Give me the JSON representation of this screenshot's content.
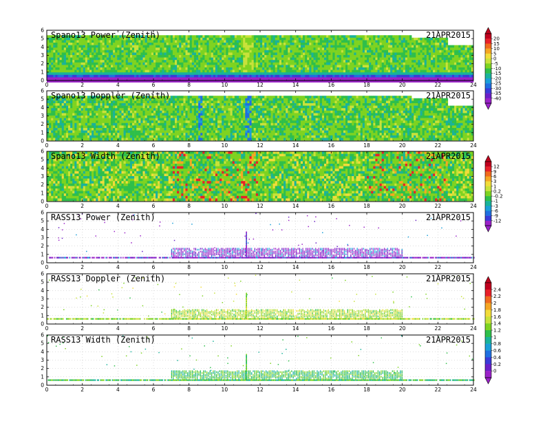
{
  "chart_data": [
    {
      "type": "heatmap",
      "title": "Spano13 Power (Zenith)",
      "date": "21APR2015",
      "x_ticks": [
        "0",
        "2",
        "4",
        "6",
        "8",
        "10",
        "12",
        "14",
        "16",
        "18",
        "20",
        "22",
        "24"
      ],
      "y_ticks": [
        "0",
        "1",
        "2",
        "3",
        "4",
        "5",
        "6"
      ],
      "xlim": [
        0,
        24
      ],
      "ylim": [
        0,
        6
      ],
      "field": "power_profile",
      "colorbar": "cb1"
    },
    {
      "type": "heatmap",
      "title": "Spano13 Doppler (Zenith)",
      "date": "21APR2015",
      "x_ticks": [
        "0",
        "2",
        "4",
        "6",
        "8",
        "10",
        "12",
        "14",
        "16",
        "18",
        "20",
        "22",
        "24"
      ],
      "y_ticks": [
        "0",
        "1",
        "2",
        "3",
        "4",
        "5",
        "6"
      ],
      "xlim": [
        0,
        24
      ],
      "ylim": [
        0,
        6
      ],
      "field": "doppler_profile",
      "colorbar": null
    },
    {
      "type": "heatmap",
      "title": "Spano13 Width (Zenith)",
      "date": "21APR2015",
      "x_ticks": [
        "0",
        "2",
        "4",
        "6",
        "8",
        "10",
        "12",
        "14",
        "16",
        "18",
        "20",
        "22",
        "24"
      ],
      "y_ticks": [
        "0",
        "1",
        "2",
        "3",
        "4",
        "5",
        "6"
      ],
      "xlim": [
        0,
        24
      ],
      "ylim": [
        0,
        6
      ],
      "field": "width_profile",
      "colorbar": "cb2"
    },
    {
      "type": "scatter",
      "title": "RASS13 Power (Zenith)",
      "date": "21APR2015",
      "x_ticks": [
        "0",
        "2",
        "4",
        "6",
        "8",
        "10",
        "12",
        "14",
        "16",
        "18",
        "20",
        "22",
        "24"
      ],
      "y_ticks": [
        "0",
        "1",
        "2",
        "3",
        "4",
        "5",
        "6"
      ],
      "xlim": [
        0,
        24
      ],
      "ylim": [
        0,
        6
      ],
      "field": "rass_power",
      "colorbar": null
    },
    {
      "type": "scatter",
      "title": "RASS13 Doppler (Zenith)",
      "date": "21APR2015",
      "x_ticks": [
        "0",
        "2",
        "4",
        "6",
        "8",
        "10",
        "12",
        "14",
        "16",
        "18",
        "20",
        "22",
        "24"
      ],
      "y_ticks": [
        "0",
        "1",
        "2",
        "3",
        "4",
        "5",
        "6"
      ],
      "xlim": [
        0,
        24
      ],
      "ylim": [
        0,
        6
      ],
      "field": "rass_doppler",
      "colorbar": "cb3"
    },
    {
      "type": "scatter",
      "title": "RASS13 Width (Zenith)",
      "date": "21APR2015",
      "x_ticks": [
        "0",
        "2",
        "4",
        "6",
        "8",
        "10",
        "12",
        "14",
        "16",
        "18",
        "20",
        "22",
        "24"
      ],
      "y_ticks": [
        "0",
        "1",
        "2",
        "3",
        "4",
        "5",
        "6"
      ],
      "xlim": [
        0,
        24
      ],
      "ylim": [
        0,
        6
      ],
      "field": "rass_width",
      "colorbar": null
    }
  ],
  "colorbars": {
    "cb1": {
      "labels": [
        "20",
        "15",
        "10",
        "5",
        "0",
        "-5",
        "-10",
        "-15",
        "-20",
        "-25",
        "-30",
        "-35",
        "-40"
      ],
      "colors": [
        "#c0001e",
        "#e8202a",
        "#f06a1e",
        "#f5a623",
        "#f2dc3a",
        "#c8e23a",
        "#7ed321",
        "#2fbf4a",
        "#19b39a",
        "#1a9fd8",
        "#1f6fe0",
        "#3a3ad8",
        "#6a1fc8",
        "#9a22c8"
      ]
    },
    "cb2": {
      "labels": [
        "12",
        "9",
        "6",
        "3",
        "1",
        "0.2",
        "-0.2",
        "-1",
        "-3",
        "-6",
        "-9",
        "-12"
      ],
      "colors": [
        "#c0001e",
        "#e8202a",
        "#f06a1e",
        "#f5a623",
        "#f2dc3a",
        "#c8e23a",
        "#7ed321",
        "#2fbf4a",
        "#19b39a",
        "#1a9fd8",
        "#1f6fe0",
        "#3a3ad8",
        "#9a22c8"
      ]
    },
    "cb3": {
      "labels": [
        "2.4",
        "2.2",
        "2",
        "1.8",
        "1.6",
        "1.4",
        "1.2",
        "1",
        "0.8",
        "0.6",
        "0.4",
        "0.2",
        "0"
      ],
      "colors": [
        "#c0001e",
        "#e8202a",
        "#f06a1e",
        "#f5a623",
        "#f2dc3a",
        "#c8e23a",
        "#7ed321",
        "#2fbf4a",
        "#19b39a",
        "#1a9fd8",
        "#1f6fe0",
        "#3a3ad8",
        "#6a1fc8",
        "#9a22c8"
      ]
    }
  }
}
